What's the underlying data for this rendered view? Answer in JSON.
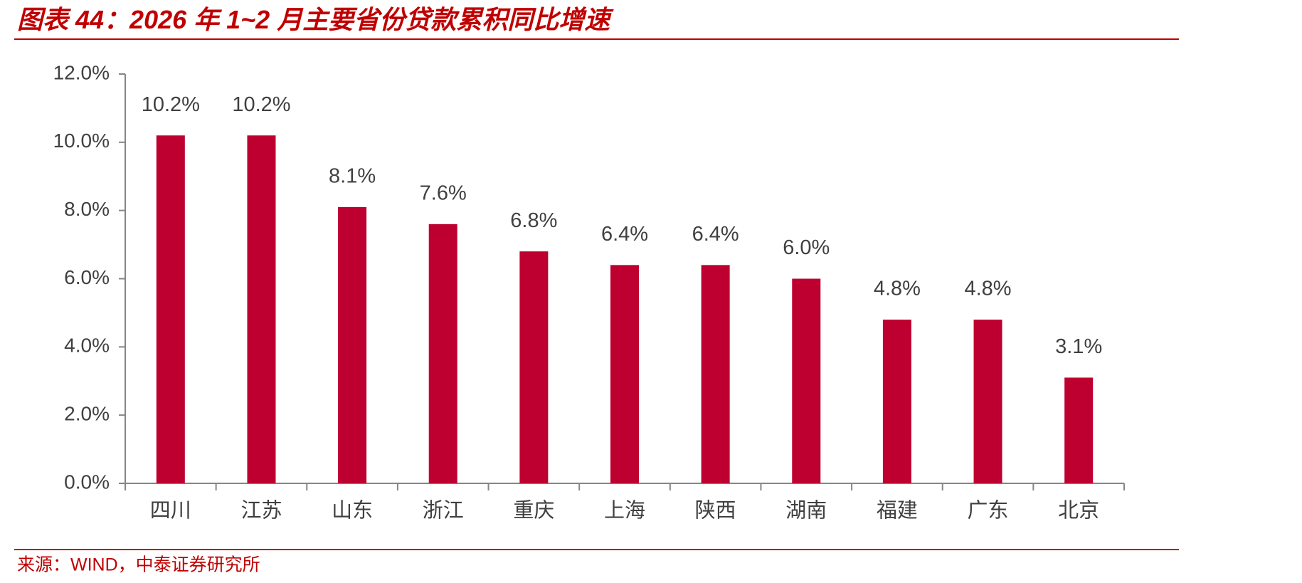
{
  "chart_data": {
    "type": "bar",
    "title": "图表 44：2026 年 1~2 月主要省份贷款累积同比增速",
    "source": "来源：WIND，中泰证券研究所",
    "categories": [
      "四川",
      "江苏",
      "山东",
      "浙江",
      "重庆",
      "上海",
      "陕西",
      "湖南",
      "福建",
      "广东",
      "北京"
    ],
    "values": [
      10.2,
      10.2,
      8.1,
      7.6,
      6.8,
      6.4,
      6.4,
      6.0,
      4.8,
      4.8,
      3.1
    ],
    "value_labels": [
      "10.2%",
      "10.2%",
      "8.1%",
      "7.6%",
      "6.8%",
      "6.4%",
      "6.4%",
      "6.0%",
      "4.8%",
      "4.8%",
      "3.1%"
    ],
    "color": "#bd0030",
    "ylim": [
      0,
      12
    ],
    "yticks": [
      {
        "value": 0,
        "label": "0.0%"
      },
      {
        "value": 2,
        "label": "2.0%"
      },
      {
        "value": 4,
        "label": "4.0%"
      },
      {
        "value": 6,
        "label": "6.0%"
      },
      {
        "value": 8,
        "label": "8.0%"
      },
      {
        "value": 10,
        "label": "10.0%"
      },
      {
        "value": 12,
        "label": "12.0%"
      }
    ],
    "grid": false
  }
}
